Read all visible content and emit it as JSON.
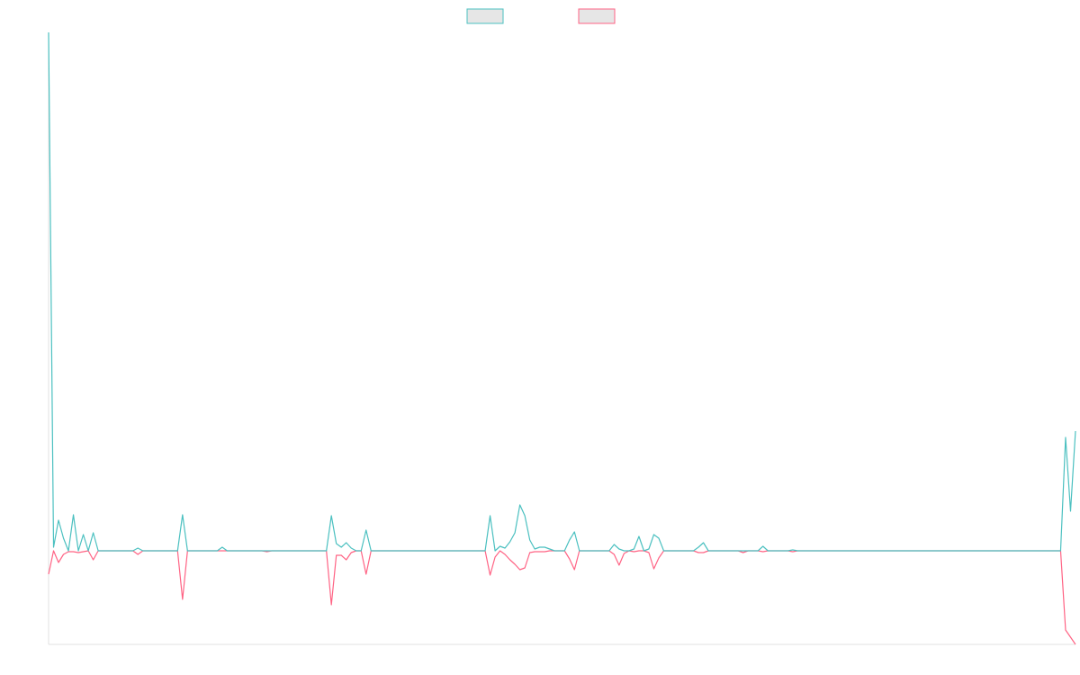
{
  "chart_data": {
    "type": "line",
    "ylim": [
      -104,
      576
    ],
    "series": [
      {
        "color": "#4bc0c0",
        "values": [
          576,
          4,
          34,
          14,
          0,
          40,
          0,
          18,
          0,
          20,
          0,
          0,
          0,
          0,
          0,
          0,
          0,
          0,
          3,
          0,
          0,
          0,
          0,
          0,
          0,
          0,
          0,
          40,
          0,
          0,
          0,
          0,
          0,
          0,
          0,
          4,
          0,
          0,
          0,
          0,
          0,
          0,
          0,
          0,
          0,
          0,
          0,
          0,
          0,
          0,
          0,
          0,
          0,
          0,
          0,
          0,
          0,
          39,
          8,
          4,
          9,
          3,
          0,
          0,
          23,
          0,
          0,
          0,
          0,
          0,
          0,
          0,
          0,
          0,
          0,
          0,
          0,
          0,
          0,
          0,
          0,
          0,
          0,
          0,
          0,
          0,
          0,
          0,
          0,
          39,
          0,
          5,
          3,
          10,
          20,
          51,
          39,
          12,
          2,
          4,
          4,
          2,
          0,
          0,
          0,
          12,
          21,
          0,
          0,
          0,
          0,
          0,
          0,
          0,
          7,
          2,
          0,
          0,
          2,
          16,
          0,
          2,
          18,
          14,
          0,
          0,
          0,
          0,
          0,
          0,
          0,
          4,
          9,
          0,
          0,
          0,
          0,
          0,
          0,
          0,
          0,
          0,
          0,
          0,
          5,
          0,
          0,
          0,
          0,
          0,
          1,
          0,
          0,
          0,
          0,
          0,
          0,
          0,
          0,
          0,
          0,
          0,
          0,
          0,
          0,
          0,
          0,
          0,
          0,
          0,
          0,
          0,
          0,
          0,
          0,
          0,
          0,
          0,
          0,
          0,
          0,
          0,
          0,
          0,
          0,
          0,
          0,
          0,
          0,
          0,
          0,
          0,
          0,
          0,
          0,
          0,
          0,
          0,
          0,
          0,
          0,
          0,
          0,
          0,
          0,
          126,
          44,
          133
        ]
      },
      {
        "color": "#ff6384",
        "values": [
          -26,
          0,
          -13,
          -4,
          -1,
          -1,
          -2,
          -1,
          0,
          -10,
          0,
          0,
          0,
          0,
          0,
          0,
          0,
          0,
          -4,
          0,
          0,
          0,
          0,
          0,
          0,
          0,
          0,
          -54,
          0,
          0,
          0,
          0,
          0,
          0,
          0,
          0,
          0,
          0,
          0,
          0,
          0,
          0,
          0,
          0,
          -1,
          0,
          0,
          0,
          0,
          0,
          0,
          0,
          0,
          0,
          0,
          0,
          0,
          -60,
          -5,
          -5,
          -10,
          -2,
          0,
          0,
          -26,
          0,
          0,
          0,
          0,
          0,
          0,
          0,
          0,
          0,
          0,
          0,
          0,
          0,
          0,
          0,
          0,
          0,
          0,
          0,
          0,
          0,
          0,
          0,
          0,
          -27,
          -7,
          0,
          -4,
          -10,
          -15,
          -21,
          -19,
          -2,
          -1,
          -1,
          -1,
          0,
          0,
          0,
          0,
          -9,
          -21,
          0,
          0,
          0,
          0,
          0,
          0,
          0,
          -4,
          -16,
          -3,
          0,
          -1,
          0,
          0,
          -2,
          -20,
          -8,
          0,
          0,
          0,
          0,
          0,
          0,
          0,
          -2,
          -2,
          0,
          0,
          0,
          0,
          0,
          0,
          0,
          -2,
          0,
          0,
          0,
          -1,
          0,
          0,
          0,
          0,
          0,
          -1,
          0,
          0,
          0,
          0,
          0,
          0,
          0,
          0,
          0,
          0,
          0,
          0,
          0,
          0,
          0,
          0,
          0,
          0,
          0,
          0,
          0,
          0,
          0,
          0,
          0,
          0,
          0,
          0,
          0,
          0,
          0,
          0,
          0,
          0,
          0,
          0,
          0,
          0,
          0,
          0,
          0,
          0,
          0,
          0,
          0,
          0,
          0,
          0,
          0,
          0,
          0,
          0,
          0,
          0,
          -88,
          -96,
          -104
        ]
      }
    ]
  }
}
